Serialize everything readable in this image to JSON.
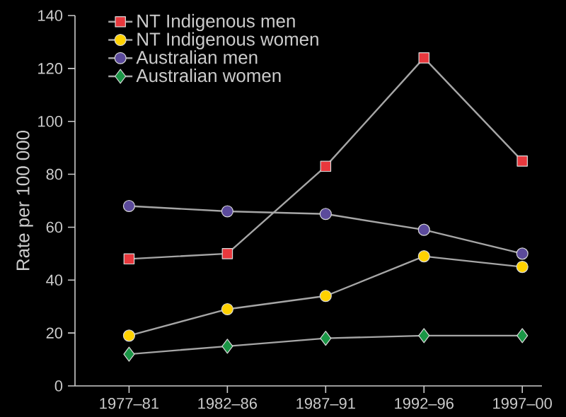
{
  "chart_data": {
    "type": "line",
    "ylabel": "Rate per 100 000",
    "categories": [
      "1977–81",
      "1982–86",
      "1987–91",
      "1992–96",
      "1997–00"
    ],
    "series": [
      {
        "name": "NT Indigenous men",
        "color": "#e8383d",
        "marker": "square",
        "values": [
          48,
          50,
          83,
          124,
          85
        ]
      },
      {
        "name": "NT Indigenous women",
        "color": "#ffd200",
        "marker": "circle",
        "values": [
          19,
          29,
          34,
          49,
          45
        ]
      },
      {
        "name": "Australian men",
        "color": "#5b4a9b",
        "marker": "circle",
        "values": [
          68,
          66,
          65,
          59,
          50
        ]
      },
      {
        "name": "Australian women",
        "color": "#1a9646",
        "marker": "diamond",
        "values": [
          12,
          15,
          18,
          19,
          19
        ]
      }
    ],
    "ylim": [
      0,
      140
    ],
    "yticks": [
      0,
      20,
      40,
      60,
      80,
      100,
      120,
      140
    ],
    "legend": "top left",
    "grid": false
  }
}
